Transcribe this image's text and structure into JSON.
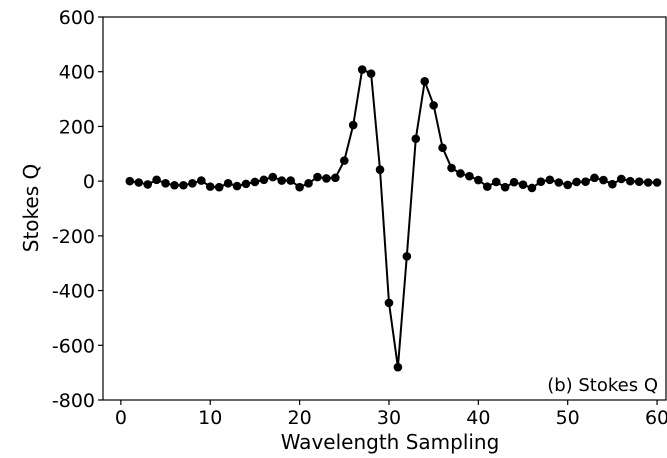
{
  "chart_data": {
    "type": "line",
    "xlabel": "Wavelength Sampling",
    "ylabel": "Stokes Q",
    "annotation": "(b) Stokes Q",
    "xlim": [
      -2,
      61
    ],
    "ylim": [
      -800,
      600
    ],
    "xticks": [
      0,
      10,
      20,
      30,
      40,
      50,
      60
    ],
    "yticks": [
      -800,
      -600,
      -400,
      -200,
      0,
      200,
      400,
      600
    ],
    "grid": false,
    "marker": "circle",
    "color": "#000000",
    "series": [
      {
        "x": [
          1,
          2,
          3,
          4,
          5,
          6,
          7,
          8,
          9,
          10,
          11,
          12,
          13,
          14,
          15,
          16,
          17,
          18,
          19,
          20,
          21,
          22,
          23,
          24,
          25,
          26,
          27,
          28,
          29,
          30,
          31,
          32,
          33,
          34,
          35,
          36,
          37,
          38,
          39,
          40,
          41,
          42,
          43,
          44,
          45,
          46,
          47,
          48,
          49,
          50,
          51,
          52,
          53,
          54,
          55,
          56,
          57,
          58,
          59,
          60
        ],
        "values": [
          0,
          -5,
          -12,
          5,
          -8,
          -15,
          -15,
          -8,
          2,
          -20,
          -22,
          -8,
          -18,
          -10,
          -3,
          5,
          15,
          2,
          2,
          -22,
          -8,
          15,
          10,
          12,
          75,
          205,
          408,
          393,
          42,
          -445,
          -680,
          -275,
          155,
          365,
          277,
          122,
          48,
          28,
          18,
          4,
          -20,
          -3,
          -22,
          -4,
          -13,
          -25,
          -2,
          5,
          -5,
          -14,
          -3,
          -2,
          12,
          4,
          -11,
          8,
          0,
          -2,
          -5,
          -5
        ]
      }
    ]
  }
}
